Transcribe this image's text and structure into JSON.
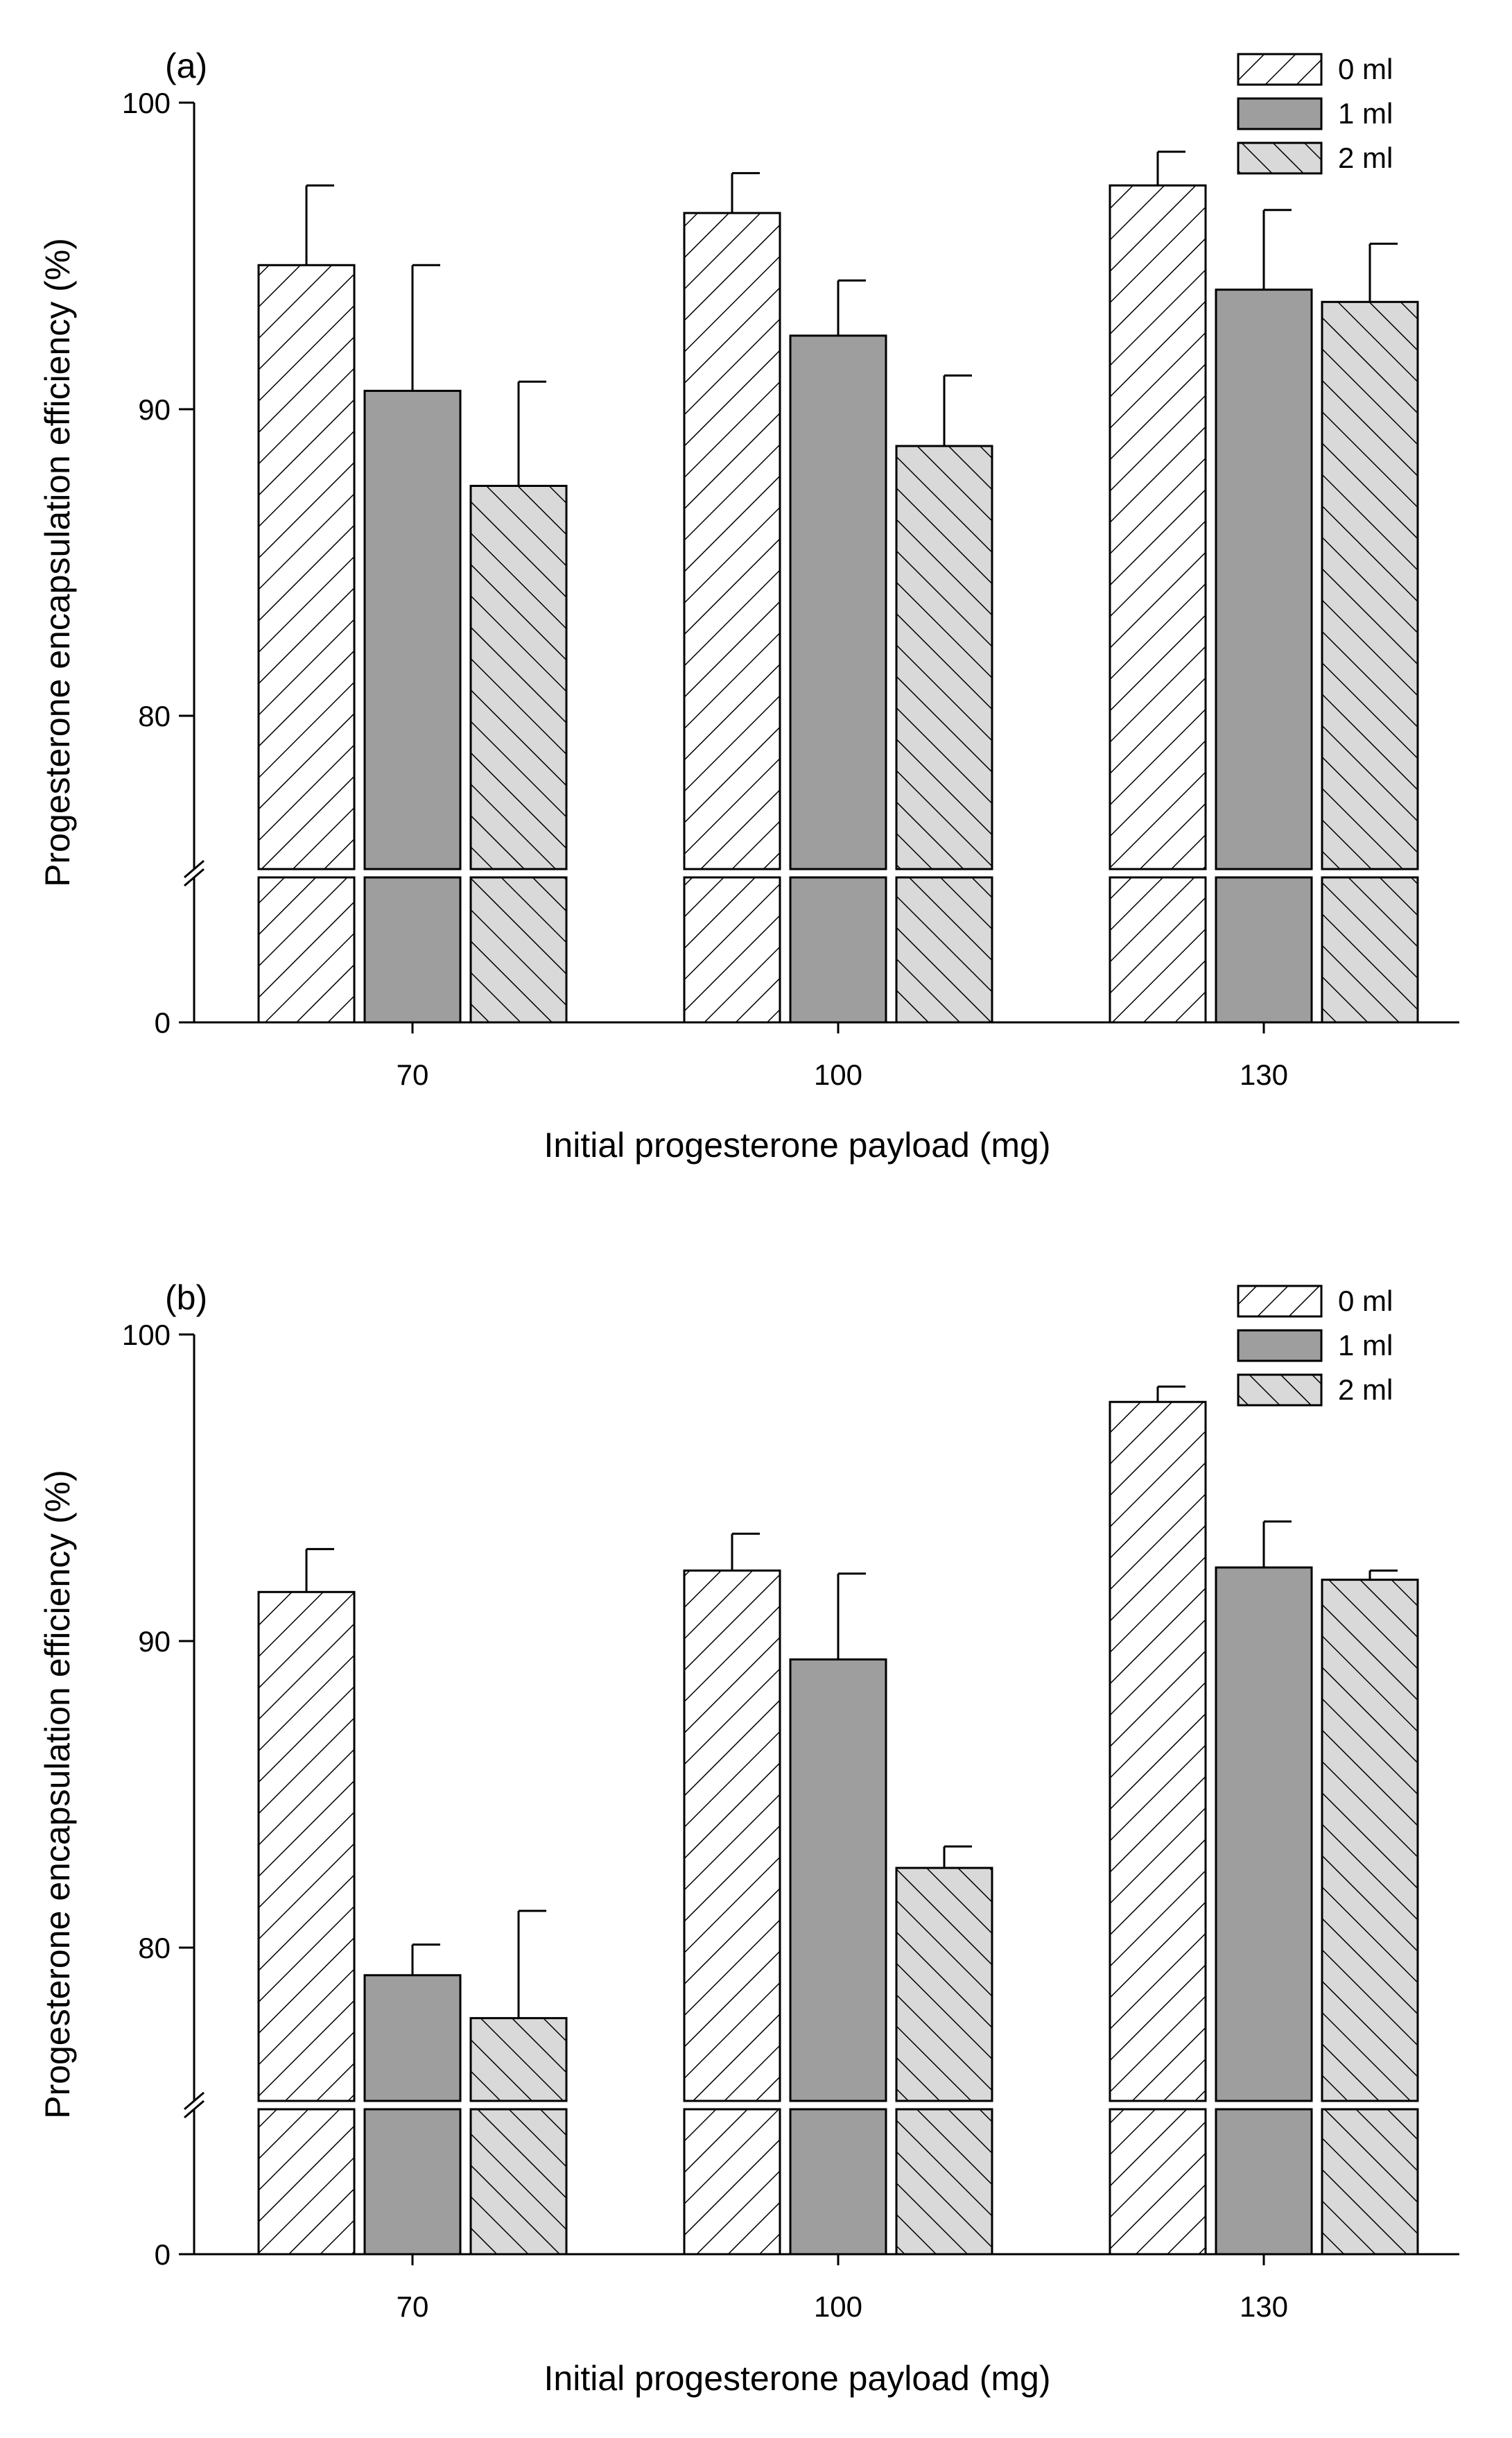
{
  "chart_data": [
    {
      "panel": "(a)",
      "type": "bar",
      "xlabel": "Initial progesterone payload (mg)",
      "ylabel": "Progesterone encapsulation efficiency (%)",
      "categories": [
        "70",
        "100",
        "130"
      ],
      "yticks": [
        "0",
        "80",
        "90",
        "100"
      ],
      "ylim_upper": [
        75,
        100
      ],
      "axis_break": true,
      "legend_position": "top-right",
      "series": [
        {
          "name": "0 ml",
          "pattern": "hatch-forward",
          "values": [
            94.7,
            96.4,
            97.3
          ],
          "errors": [
            2.6,
            1.3,
            1.1
          ]
        },
        {
          "name": "1 ml",
          "pattern": "solid-gray",
          "values": [
            90.6,
            92.4,
            93.9
          ],
          "errors": [
            4.1,
            1.8,
            2.6
          ]
        },
        {
          "name": "2 ml",
          "pattern": "hatch-back",
          "values": [
            87.5,
            88.8,
            93.5
          ],
          "errors": [
            3.4,
            2.3,
            1.9
          ]
        }
      ]
    },
    {
      "panel": "(b)",
      "type": "bar",
      "xlabel": "Initial progesterone payload (mg)",
      "ylabel": "Progesterone encapsulation efficiency (%)",
      "categories": [
        "70",
        "100",
        "130"
      ],
      "yticks": [
        "0",
        "80",
        "90",
        "100"
      ],
      "ylim_upper": [
        75,
        100
      ],
      "axis_break": true,
      "legend_position": "top-right",
      "series": [
        {
          "name": "0 ml",
          "pattern": "hatch-forward",
          "values": [
            91.6,
            92.3,
            97.8
          ],
          "errors": [
            1.4,
            1.2,
            0.5
          ]
        },
        {
          "name": "1 ml",
          "pattern": "solid-gray",
          "values": [
            79.1,
            89.4,
            92.4
          ],
          "errors": [
            1.0,
            2.8,
            1.5
          ]
        },
        {
          "name": "2 ml",
          "pattern": "hatch-back",
          "values": [
            77.7,
            82.6,
            92.0
          ],
          "errors": [
            3.5,
            0.7,
            0.3
          ]
        }
      ]
    }
  ],
  "colors": {
    "axis": "#000000",
    "bar_outline": "#000000",
    "hatch_forward_fill": "#ffffff",
    "solid_fill": "#9e9e9e",
    "hatch_back_fill": "#d9d9d9"
  }
}
